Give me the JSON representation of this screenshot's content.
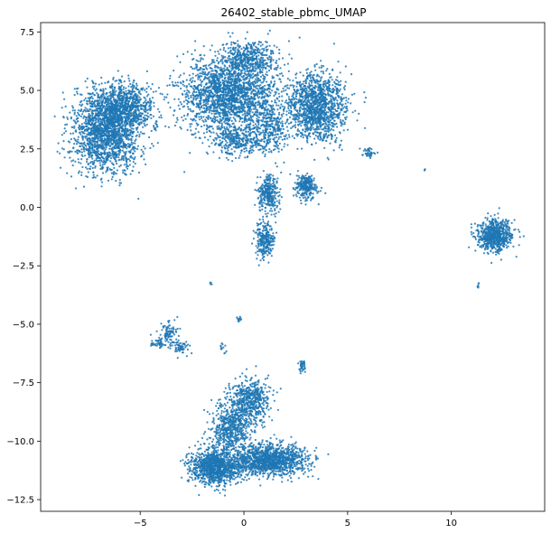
{
  "chart_data": {
    "type": "scatter",
    "title": "26402_stable_pbmc_UMAP",
    "xlabel": "",
    "ylabel": "",
    "xlim": [
      -9.8,
      14.5
    ],
    "ylim": [
      -13.0,
      7.9
    ],
    "x_ticks": [
      -5,
      0,
      5,
      10
    ],
    "y_ticks": [
      -12.5,
      -10.0,
      -7.5,
      -5.0,
      -2.5,
      0.0,
      2.5,
      5.0,
      7.5
    ],
    "x_tick_labels": [
      "−5",
      "0",
      "5",
      "10"
    ],
    "y_tick_labels": [
      "−12.5",
      "−10.0",
      "−7.5",
      "−5.0",
      "−2.5",
      "0.0",
      "2.5",
      "5.0",
      "7.5"
    ],
    "grid": false,
    "legend": "none",
    "series": [
      {
        "color": "#1f77b4",
        "clusters": [
          {
            "cx": -6.6,
            "cy": 3.2,
            "sx": 1.1,
            "sy": 1.15,
            "n": 1700
          },
          {
            "cx": -5.8,
            "cy": 4.3,
            "sx": 1.0,
            "sy": 0.7,
            "n": 800
          },
          {
            "cx": -0.7,
            "cy": 4.8,
            "sx": 1.55,
            "sy": 1.05,
            "n": 2000
          },
          {
            "cx": 0.2,
            "cy": 6.4,
            "sx": 0.9,
            "sy": 0.45,
            "n": 400
          },
          {
            "cx": -0.3,
            "cy": 2.9,
            "sx": 0.9,
            "sy": 0.5,
            "n": 350
          },
          {
            "cx": 3.5,
            "cy": 4.3,
            "sx": 0.95,
            "sy": 0.95,
            "n": 1300
          },
          {
            "cx": 1.3,
            "cy": 3.3,
            "sx": 0.55,
            "sy": 0.7,
            "n": 250
          },
          {
            "cx": 1.2,
            "cy": 0.6,
            "sx": 0.35,
            "sy": 0.5,
            "n": 300
          },
          {
            "cx": 1.0,
            "cy": -1.4,
            "sx": 0.3,
            "sy": 0.55,
            "n": 250
          },
          {
            "cx": 3.0,
            "cy": 0.9,
            "sx": 0.35,
            "sy": 0.35,
            "n": 250
          },
          {
            "cx": 6.0,
            "cy": 2.3,
            "sx": 0.25,
            "sy": 0.15,
            "n": 40
          },
          {
            "cx": 12.1,
            "cy": -1.2,
            "sx": 0.55,
            "sy": 0.45,
            "n": 700
          },
          {
            "cx": -3.6,
            "cy": -5.4,
            "sx": 0.35,
            "sy": 0.35,
            "n": 90
          },
          {
            "cx": -3.0,
            "cy": -6.0,
            "sx": 0.3,
            "sy": 0.2,
            "n": 60
          },
          {
            "cx": -4.2,
            "cy": -5.8,
            "sx": 0.3,
            "sy": 0.15,
            "n": 40
          },
          {
            "cx": 2.8,
            "cy": -6.8,
            "sx": 0.12,
            "sy": 0.22,
            "n": 40
          },
          {
            "cx": -0.2,
            "cy": -4.8,
            "sx": 0.08,
            "sy": 0.1,
            "n": 12
          },
          {
            "cx": -1.0,
            "cy": -6.0,
            "sx": 0.1,
            "sy": 0.2,
            "n": 12
          },
          {
            "cx": 0.3,
            "cy": -8.3,
            "sx": 0.65,
            "sy": 0.7,
            "n": 500
          },
          {
            "cx": -1.4,
            "cy": -11.1,
            "sx": 0.75,
            "sy": 0.5,
            "n": 1100
          },
          {
            "cx": 1.2,
            "cy": -10.8,
            "sx": 1.2,
            "sy": 0.45,
            "n": 1300
          },
          {
            "cx": -0.6,
            "cy": -9.4,
            "sx": 0.7,
            "sy": 0.75,
            "n": 550
          },
          {
            "cx": 8.7,
            "cy": 1.6,
            "sx": 0.03,
            "sy": 0.03,
            "n": 3
          },
          {
            "cx": -1.6,
            "cy": -3.25,
            "sx": 0.04,
            "sy": 0.04,
            "n": 4
          },
          {
            "cx": 11.3,
            "cy": -3.3,
            "sx": 0.05,
            "sy": 0.08,
            "n": 6
          }
        ]
      }
    ]
  }
}
